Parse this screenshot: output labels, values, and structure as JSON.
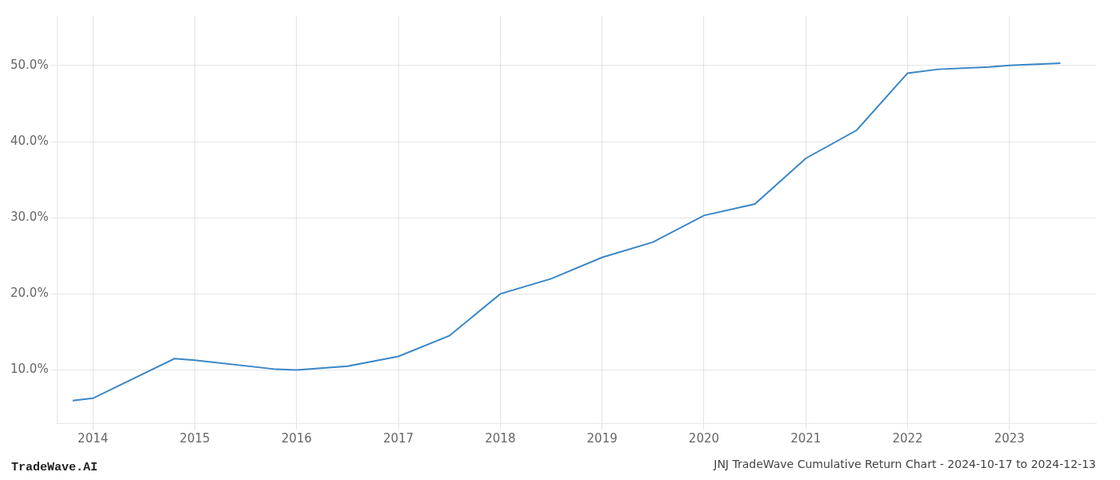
{
  "chart_data": {
    "type": "line",
    "title": "JNJ TradeWave Cumulative Return Chart - 2024-10-17 to 2024-12-13",
    "annotations": [
      "TradeWave.AI"
    ],
    "x": [
      2013.8,
      2014.0,
      2014.8,
      2015.0,
      2015.8,
      2016.0,
      2016.5,
      2017.0,
      2017.5,
      2018.0,
      2018.5,
      2019.0,
      2019.5,
      2020.0,
      2020.5,
      2021.0,
      2021.5,
      2022.0,
      2022.3,
      2022.8,
      2023.0,
      2023.5
    ],
    "values": [
      0.06,
      0.063,
      0.115,
      0.113,
      0.101,
      0.1,
      0.105,
      0.118,
      0.145,
      0.2,
      0.22,
      0.248,
      0.268,
      0.303,
      0.318,
      0.378,
      0.415,
      0.49,
      0.495,
      0.498,
      0.5,
      0.503
    ],
    "color": "#3a86c8",
    "marker": "none",
    "xlim": [
      2013.65,
      2023.85
    ],
    "xticks": [
      2014,
      2015,
      2016,
      2017,
      2018,
      2019,
      2020,
      2021,
      2022,
      2023
    ],
    "ylim": [
      0.03,
      0.565
    ],
    "yticks": [
      {
        "value": 0.1,
        "label": "10.0%"
      },
      {
        "value": 0.2,
        "label": "20.0%"
      },
      {
        "value": 0.3,
        "label": "30.0%"
      },
      {
        "value": 0.4,
        "label": "40.0%"
      },
      {
        "value": 0.5,
        "label": "50.0%"
      }
    ],
    "grid": true
  }
}
